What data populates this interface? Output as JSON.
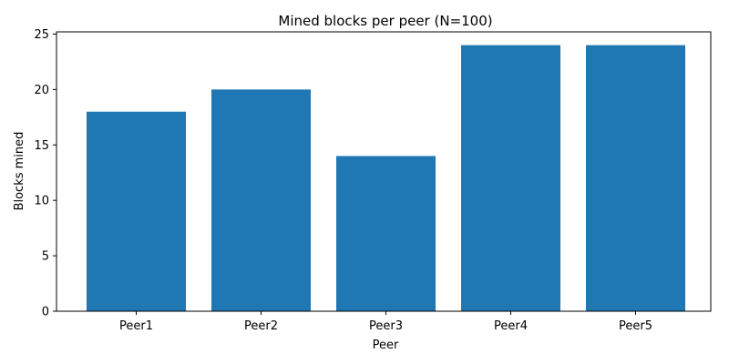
{
  "chart_data": {
    "type": "bar",
    "title": "Mined blocks per peer (N=100)",
    "xlabel": "Peer",
    "ylabel": "Blocks mined",
    "categories": [
      "Peer1",
      "Peer2",
      "Peer3",
      "Peer4",
      "Peer5"
    ],
    "values": [
      18,
      20,
      14,
      24,
      24
    ],
    "ylim": [
      0,
      25.2
    ],
    "yticks": [
      0,
      5,
      10,
      15,
      20,
      25
    ],
    "grid": false,
    "bar_color": "#1f77b4"
  }
}
